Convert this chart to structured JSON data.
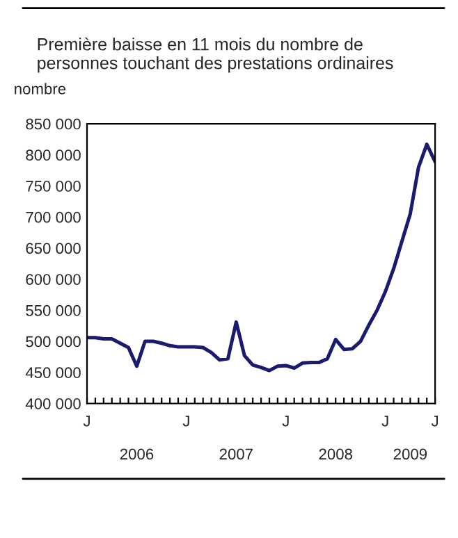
{
  "chart_data": {
    "type": "line",
    "title": "Première baisse en 11 mois du nombre de\npersonnes touchant des prestations ordinaires",
    "ylabel": "nombre",
    "categories": [
      "J",
      null,
      null,
      null,
      null,
      null,
      null,
      null,
      null,
      null,
      null,
      null,
      "J",
      null,
      null,
      null,
      null,
      null,
      null,
      null,
      null,
      null,
      null,
      null,
      "J",
      null,
      null,
      null,
      null,
      null,
      null,
      null,
      null,
      null,
      null,
      null,
      "J",
      null,
      null,
      null,
      null,
      null,
      "J"
    ],
    "annotations": [
      "2006",
      "2007",
      "2008",
      "2009"
    ],
    "series": [
      {
        "color": "#1a1a6e",
        "values": [
          506000,
          506000,
          504000,
          504000,
          497000,
          490000,
          460000,
          500000,
          500000,
          497000,
          493000,
          491000,
          491000,
          491000,
          490000,
          482000,
          470000,
          472000,
          531000,
          477000,
          462000,
          458000,
          453000,
          460000,
          461000,
          457000,
          465000,
          466000,
          466000,
          472000,
          503000,
          487000,
          488000,
          500000,
          526000,
          550000,
          580000,
          617000,
          661000,
          705000,
          780000,
          817000,
          789000
        ]
      }
    ],
    "ylim": [
      400000,
      850000
    ],
    "yticks": [
      {
        "value": 400000,
        "label": "400 000"
      },
      {
        "value": 450000,
        "label": "450 000"
      },
      {
        "value": 500000,
        "label": "500 000"
      },
      {
        "value": 550000,
        "label": "550 000"
      },
      {
        "value": 600000,
        "label": "600 000"
      },
      {
        "value": 650000,
        "label": "650 000"
      },
      {
        "value": 700000,
        "label": "700 000"
      },
      {
        "value": 750000,
        "label": "750 000"
      },
      {
        "value": 800000,
        "label": "800 000"
      },
      {
        "value": 850000,
        "label": "850 000"
      }
    ],
    "grid": false,
    "legend": false,
    "marker": "none",
    "line_style": "solid"
  }
}
